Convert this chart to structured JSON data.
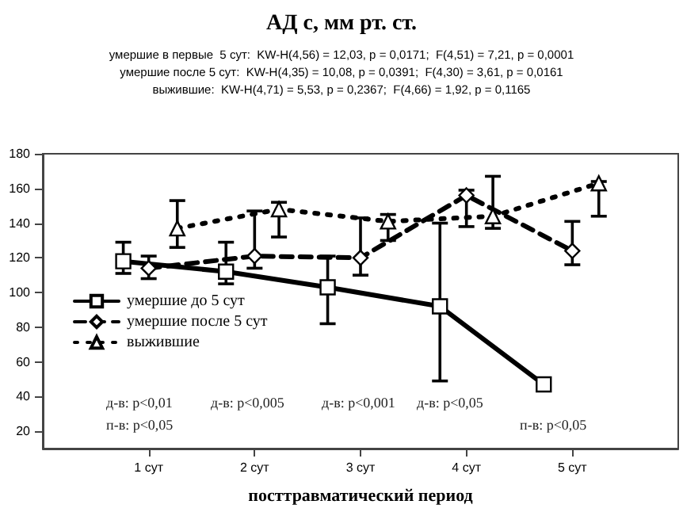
{
  "chart_data": {
    "type": "line",
    "title": "АД с, мм рт. ст.",
    "subtitle": "умершие в первые  5 сут:  KW-H(4,56) = 12,03, p = 0,0171;  F(4,51) = 7,21, p = 0,0001\nумершие после 5 сут:  KW-H(4,35) = 10,08, p = 0,0391;  F(4,30) = 3,61, p = 0,0161\nвыжившие:  KW-H(4,71) = 5,53, p = 0,2367;  F(4,66) = 1,92, p = 0,1165",
    "xlabel": "посттравматический период",
    "xlim": [
      0,
      6
    ],
    "xticks": [
      {
        "value": 1,
        "label": "1 сут"
      },
      {
        "value": 2,
        "label": "2 сут"
      },
      {
        "value": 3,
        "label": "3 сут"
      },
      {
        "value": 4,
        "label": "4 сут"
      },
      {
        "value": 5,
        "label": "5 сут"
      }
    ],
    "ylim": [
      10,
      180
    ],
    "yticks": [
      20,
      40,
      60,
      80,
      100,
      120,
      140,
      160,
      180
    ],
    "grid": false,
    "legend": "center left",
    "series": [
      {
        "name": "умершие до 5 сут",
        "color": "#000000",
        "marker": "square",
        "line_style": "solid",
        "x": [
          0.76,
          1.73,
          2.69,
          3.75,
          4.73
        ],
        "values": [
          118,
          112,
          103,
          92,
          47
        ],
        "errors": [
          [
            111,
            129
          ],
          [
            105,
            129
          ],
          [
            82,
            121
          ],
          [
            49,
            140
          ],
          null
        ]
      },
      {
        "name": "умершие после 5 сут",
        "color": "#000000",
        "marker": "diamond",
        "line_style": "dashed",
        "x": [
          1,
          2,
          3,
          4,
          5
        ],
        "values": [
          114,
          121,
          120,
          156,
          124
        ],
        "errors": [
          [
            108,
            121
          ],
          [
            114,
            147
          ],
          [
            110,
            143
          ],
          [
            138,
            159
          ],
          [
            116,
            141
          ]
        ]
      },
      {
        "name": "выжившие",
        "color": "#000000",
        "marker": "triangle",
        "line_style": "dotted",
        "x": [
          1.27,
          2.23,
          3.26,
          4.25,
          5.25
        ],
        "values": [
          137,
          148,
          141,
          144,
          163
        ],
        "errors": [
          [
            126,
            153
          ],
          [
            132,
            152
          ],
          [
            130,
            145
          ],
          [
            137,
            167
          ],
          [
            144,
            164
          ]
        ]
      }
    ],
    "annotations": [
      "д-в: p<0,01",
      "д-в: p<0,005",
      "д-в: p<0,001",
      "д-в: p<0,05",
      "п-в: p<0,05",
      "п-в: p<0,05"
    ]
  }
}
